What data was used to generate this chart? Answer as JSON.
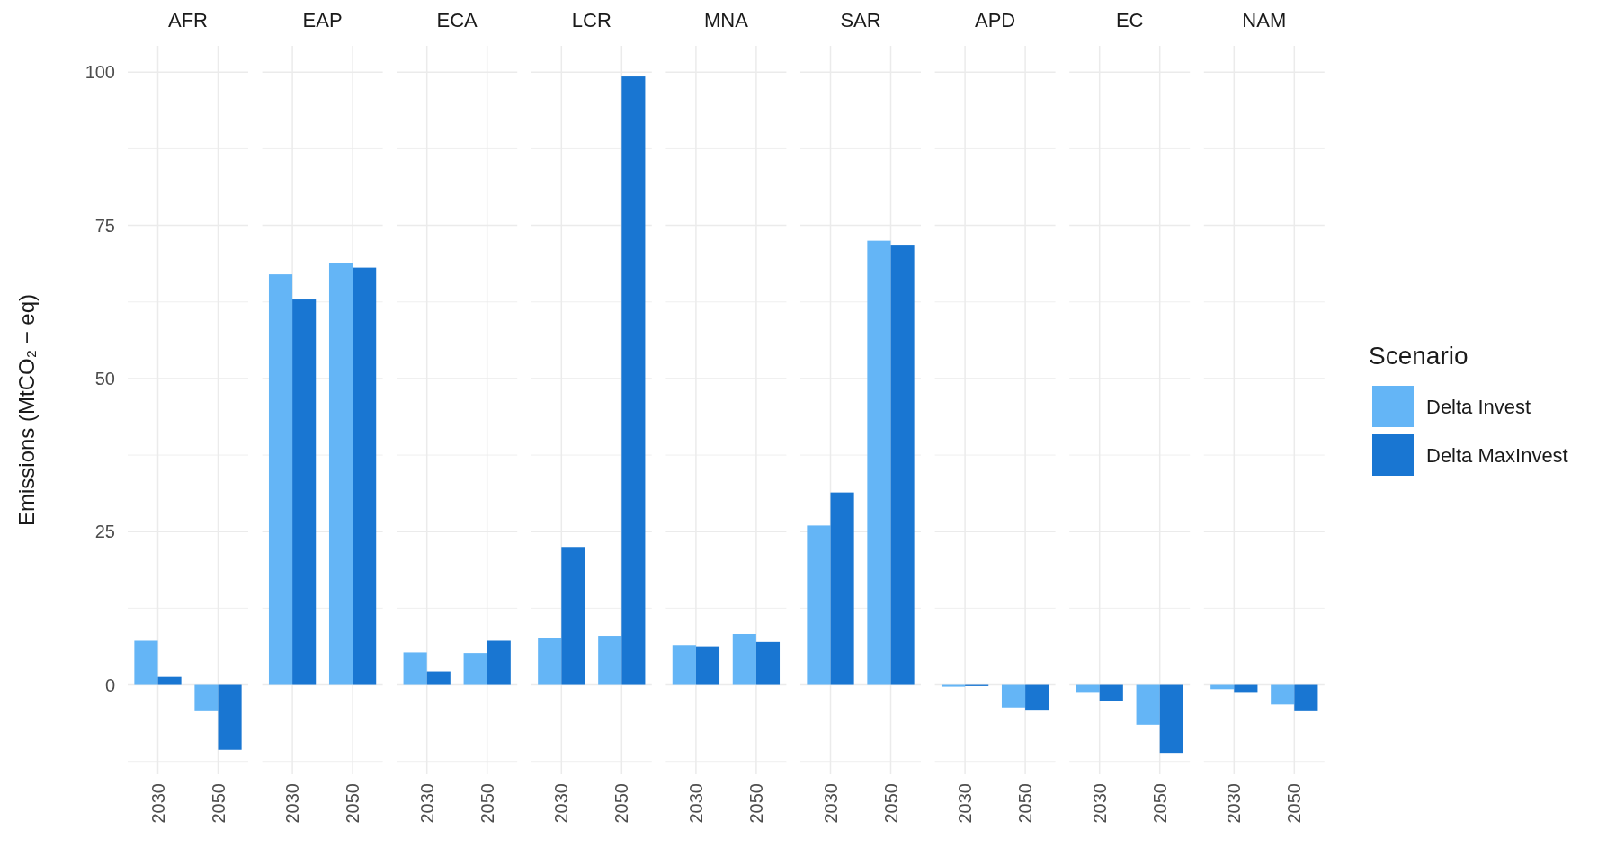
{
  "chart_data": [
    {
      "type": "bar",
      "title": "AFR",
      "categories": [
        "2030",
        "2050"
      ],
      "ylabel": "Emissions (MtCO₂ − eq)",
      "ylim": [
        -14.6,
        104.3
      ],
      "yticks": [
        {
          "value": -12.5,
          "label": null
        },
        0,
        {
          "value": 12.5,
          "label": null
        },
        25,
        {
          "value": 37.5,
          "label": null
        },
        50,
        {
          "value": 62.5,
          "label": null
        },
        75,
        {
          "value": 87.5,
          "label": null
        },
        100
      ],
      "grid": true,
      "legend": "right",
      "legend_title": "Scenario",
      "series": [
        {
          "name": "Delta Invest",
          "color": "#64b5f6",
          "values": [
            7.2,
            -4.3
          ]
        },
        {
          "name": "Delta MaxInvest",
          "color": "#1976d2",
          "values": [
            1.3,
            -10.6
          ]
        }
      ]
    },
    {
      "type": "bar",
      "title": "EAP",
      "categories": [
        "2030",
        "2050"
      ],
      "ylim": [
        -14.6,
        104.3
      ],
      "yticks": [
        {
          "value": -12.5,
          "label": null
        },
        0,
        {
          "value": 12.5,
          "label": null
        },
        25,
        {
          "value": 37.5,
          "label": null
        },
        50,
        {
          "value": 62.5,
          "label": null
        },
        75,
        {
          "value": 87.5,
          "label": null
        },
        100
      ],
      "grid": true,
      "tick_labels": "x",
      "series": [
        {
          "color": "#64b5f6",
          "values": [
            67,
            68.9
          ]
        },
        {
          "color": "#1976d2",
          "values": [
            62.9,
            68.1
          ]
        }
      ]
    },
    {
      "type": "bar",
      "title": "ECA",
      "categories": [
        "2030",
        "2050"
      ],
      "ylim": [
        -14.6,
        104.3
      ],
      "yticks": [
        {
          "value": -12.5,
          "label": null
        },
        0,
        {
          "value": 12.5,
          "label": null
        },
        25,
        {
          "value": 37.5,
          "label": null
        },
        50,
        {
          "value": 62.5,
          "label": null
        },
        75,
        {
          "value": 87.5,
          "label": null
        },
        100
      ],
      "grid": true,
      "tick_labels": "x",
      "series": [
        {
          "color": "#64b5f6",
          "values": [
            5.3,
            5.2
          ]
        },
        {
          "color": "#1976d2",
          "values": [
            2.2,
            7.2
          ]
        }
      ]
    },
    {
      "type": "bar",
      "title": "LCR",
      "categories": [
        "2030",
        "2050"
      ],
      "ylim": [
        -14.6,
        104.3
      ],
      "yticks": [
        {
          "value": -12.5,
          "label": null
        },
        0,
        {
          "value": 12.5,
          "label": null
        },
        25,
        {
          "value": 37.5,
          "label": null
        },
        50,
        {
          "value": 62.5,
          "label": null
        },
        75,
        {
          "value": 87.5,
          "label": null
        },
        100
      ],
      "grid": true,
      "tick_labels": "x",
      "series": [
        {
          "color": "#64b5f6",
          "values": [
            7.7,
            8.0
          ]
        },
        {
          "color": "#1976d2",
          "values": [
            22.5,
            99.3
          ]
        }
      ]
    },
    {
      "type": "bar",
      "title": "MNA",
      "categories": [
        "2030",
        "2050"
      ],
      "ylim": [
        -14.6,
        104.3
      ],
      "yticks": [
        {
          "value": -12.5,
          "label": null
        },
        0,
        {
          "value": 12.5,
          "label": null
        },
        25,
        {
          "value": 37.5,
          "label": null
        },
        50,
        {
          "value": 62.5,
          "label": null
        },
        75,
        {
          "value": 87.5,
          "label": null
        },
        100
      ],
      "grid": true,
      "tick_labels": "x",
      "series": [
        {
          "color": "#64b5f6",
          "values": [
            6.5,
            8.3
          ]
        },
        {
          "color": "#1976d2",
          "values": [
            6.3,
            7.0
          ]
        }
      ]
    },
    {
      "type": "bar",
      "title": "SAR",
      "categories": [
        "2030",
        "2050"
      ],
      "ylim": [
        -14.6,
        104.3
      ],
      "yticks": [
        {
          "value": -12.5,
          "label": null
        },
        0,
        {
          "value": 12.5,
          "label": null
        },
        25,
        {
          "value": 37.5,
          "label": null
        },
        50,
        {
          "value": 62.5,
          "label": null
        },
        75,
        {
          "value": 87.5,
          "label": null
        },
        100
      ],
      "grid": true,
      "tick_labels": "x",
      "series": [
        {
          "color": "#64b5f6",
          "values": [
            26,
            72.5
          ]
        },
        {
          "color": "#1976d2",
          "values": [
            31.4,
            71.7
          ]
        }
      ]
    },
    {
      "type": "bar",
      "title": "APD",
      "categories": [
        "2030",
        "2050"
      ],
      "ylim": [
        -14.6,
        104.3
      ],
      "yticks": [
        {
          "value": -12.5,
          "label": null
        },
        0,
        {
          "value": 12.5,
          "label": null
        },
        25,
        {
          "value": 37.5,
          "label": null
        },
        50,
        {
          "value": 62.5,
          "label": null
        },
        75,
        {
          "value": 87.5,
          "label": null
        },
        100
      ],
      "grid": true,
      "tick_labels": "x",
      "series": [
        {
          "color": "#64b5f6",
          "values": [
            -0.3,
            -3.7
          ]
        },
        {
          "color": "#1976d2",
          "values": [
            -0.2,
            -4.2
          ]
        }
      ]
    },
    {
      "type": "bar",
      "title": "EC",
      "categories": [
        "2030",
        "2050"
      ],
      "ylim": [
        -14.6,
        104.3
      ],
      "yticks": [
        {
          "value": -12.5,
          "label": null
        },
        0,
        {
          "value": 12.5,
          "label": null
        },
        25,
        {
          "value": 37.5,
          "label": null
        },
        50,
        {
          "value": 62.5,
          "label": null
        },
        75,
        {
          "value": 87.5,
          "label": null
        },
        100
      ],
      "grid": true,
      "tick_labels": "x",
      "series": [
        {
          "color": "#64b5f6",
          "values": [
            -1.3,
            -6.5
          ]
        },
        {
          "color": "#1976d2",
          "values": [
            -2.7,
            -11.1
          ]
        }
      ]
    },
    {
      "type": "bar",
      "title": "NAM",
      "categories": [
        "2030",
        "2050"
      ],
      "ylim": [
        -14.6,
        104.3
      ],
      "yticks": [
        {
          "value": -12.5,
          "label": null
        },
        0,
        {
          "value": 12.5,
          "label": null
        },
        25,
        {
          "value": 37.5,
          "label": null
        },
        50,
        {
          "value": 62.5,
          "label": null
        },
        75,
        {
          "value": 87.5,
          "label": null
        },
        100
      ],
      "grid": true,
      "tick_labels": "x",
      "series": [
        {
          "color": "#64b5f6",
          "values": [
            -0.7,
            -3.2
          ]
        },
        {
          "color": "#1976d2",
          "values": [
            -1.3,
            -4.3
          ]
        }
      ]
    }
  ]
}
